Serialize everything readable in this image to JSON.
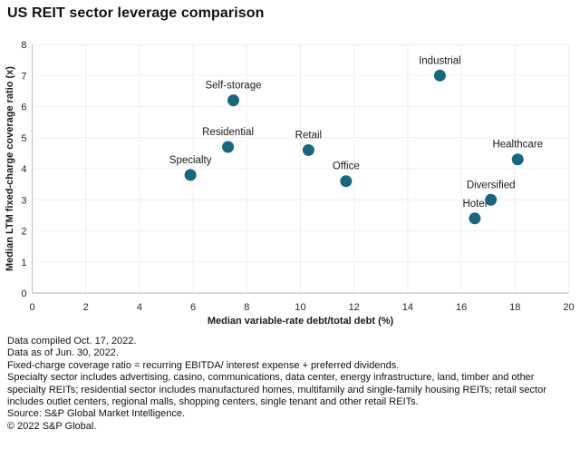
{
  "title": "US REIT sector leverage comparison",
  "colors": {
    "dot": "#15687e",
    "grid": "#efefef",
    "axis_bottom": "#d9d9d9",
    "axis_left": "#bfbfbf",
    "tick_text": "#262626",
    "label_text": "#1a1a1a"
  },
  "chart_data": {
    "type": "scatter",
    "title": "US REIT sector leverage comparison",
    "xlabel": "Median variable-rate debt/total debt (%)",
    "ylabel": "Median LTM fixed-charge coverage ratio (x)",
    "xlim": [
      0,
      20
    ],
    "ylim": [
      0,
      8
    ],
    "xtick_step": 2,
    "ytick_step": 1,
    "grid": true,
    "legend": "none",
    "points": [
      {
        "label": "Specialty",
        "x": 5.9,
        "y": 3.8
      },
      {
        "label": "Residential",
        "x": 7.3,
        "y": 4.7
      },
      {
        "label": "Self-storage",
        "x": 7.5,
        "y": 6.2
      },
      {
        "label": "Retail",
        "x": 10.3,
        "y": 4.6
      },
      {
        "label": "Office",
        "x": 11.7,
        "y": 3.6
      },
      {
        "label": "Industrial",
        "x": 15.2,
        "y": 7.0
      },
      {
        "label": "Hotel",
        "x": 16.5,
        "y": 2.4
      },
      {
        "label": "Diversified",
        "x": 17.1,
        "y": 3.0
      },
      {
        "label": "Healthcare",
        "x": 18.1,
        "y": 4.3
      }
    ]
  },
  "footer": {
    "lines": [
      "Data compiled Oct. 17, 2022.",
      "Data as of Jun. 30, 2022.",
      "Fixed-charge coverage ratio = recurring EBITDA/ interest expense + preferred dividends.",
      "Specialty sector includes advertising, casino, communications, data center, energy infrastructure, land, timber and other specialty REITs; residential sector includes manufactured homes, multifamily and single-family housing REITs; retail sector includes outlet centers, regional malls, shopping centers, single tenant and other retail REITs.",
      "Source: S&P Global Market Intelligence.",
      "© 2022 S&P Global."
    ]
  }
}
